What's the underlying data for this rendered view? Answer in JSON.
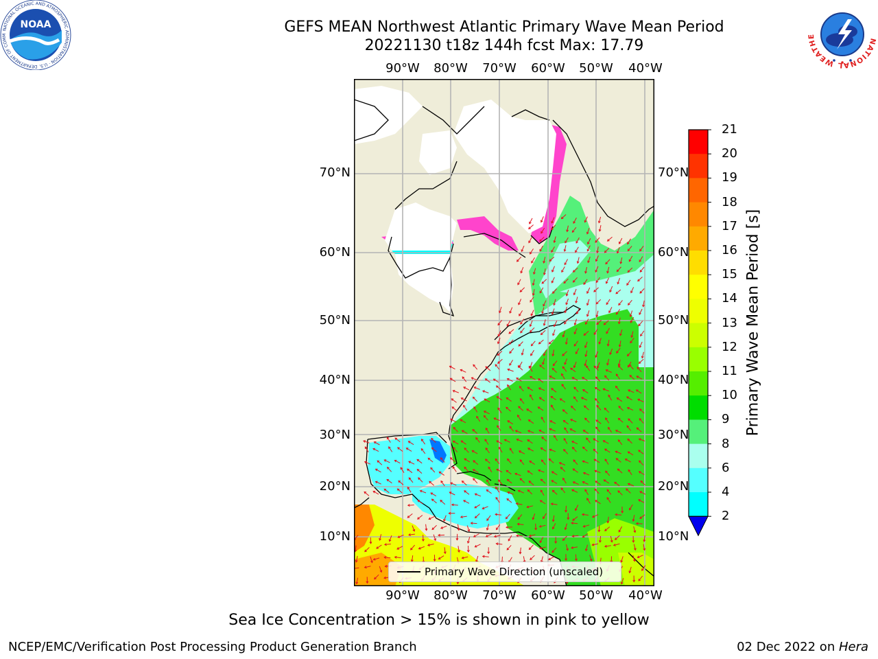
{
  "title": {
    "line1": "GEFS MEAN Northwest Atlantic Primary Wave Mean Period",
    "line2": "20221130 t18z 144h fcst   Max: 17.79"
  },
  "map": {
    "lon_labels": [
      "90°W",
      "80°W",
      "70°W",
      "60°W",
      "50°W",
      "40°W"
    ],
    "lat_labels": [
      "70°N",
      "60°N",
      "50°N",
      "40°N",
      "30°N",
      "20°N",
      "10°N"
    ],
    "legend_label": "Primary Wave Direction (unscaled)",
    "land_color": "#efedd9",
    "ice_color": "#ffffff",
    "arrow_color": "#e0141e"
  },
  "colorbar": {
    "title": "Primary Wave Mean Period [s]",
    "ticks": [
      "21",
      "20",
      "19",
      "18",
      "17",
      "16",
      "15",
      "14",
      "13",
      "12",
      "11",
      "10",
      "9",
      "8",
      "6",
      "4",
      "2"
    ],
    "colors": [
      "#ff0000",
      "#ff3300",
      "#ff6600",
      "#ff8800",
      "#ffaa00",
      "#ffdd00",
      "#ffff00",
      "#eeff00",
      "#ccff00",
      "#99ff00",
      "#55ee00",
      "#00dd00",
      "#55f07a",
      "#aaffee",
      "#55ffff",
      "#00ffff",
      "#00e6ff",
      "#0077ff",
      "#0000ee"
    ]
  },
  "footer": {
    "note": "Sea Ice Concentration > 15% is shown in pink to yellow",
    "credit": "NCEP/EMC/Verification Post Processing Product Generation Branch",
    "date_prefix": "02 Dec 2022 on ",
    "date_host": "Hera"
  },
  "logos": {
    "noaa_text": "NOAA",
    "noaa_ring": "NATIONAL OCEANIC AND ATMOSPHERIC ADMINISTRATION · U.S. DEPARTMENT OF COMMERCE",
    "nws_ring": "NATIONAL WEATHER SERVICE"
  }
}
